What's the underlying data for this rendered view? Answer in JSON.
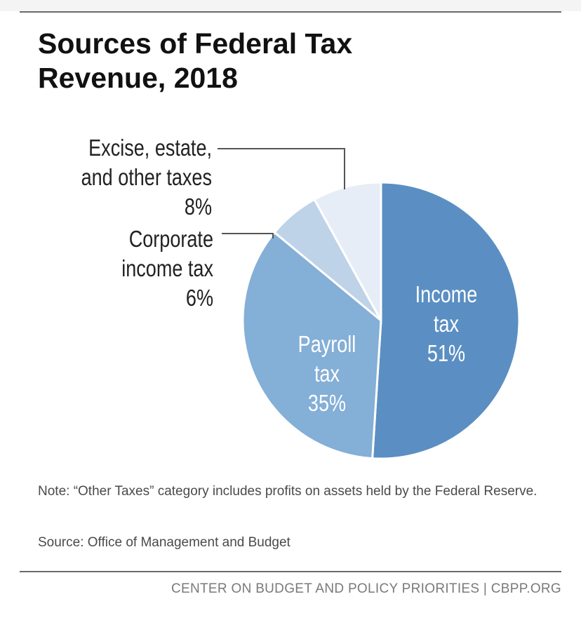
{
  "chart_data": {
    "type": "pie",
    "title_lines": [
      "Sources of Federal Tax",
      "Revenue, 2018"
    ],
    "slices": [
      {
        "name": "income_tax",
        "label_lines": [
          "Income",
          "tax"
        ],
        "value": 51,
        "value_label": "51%",
        "color": "#5b8fc3",
        "label_color": "#ffffff",
        "label_placement": "inside"
      },
      {
        "name": "payroll_tax",
        "label_lines": [
          "Payroll",
          "tax"
        ],
        "value": 35,
        "value_label": "35%",
        "color": "#84afd6",
        "label_color": "#ffffff",
        "label_placement": "inside"
      },
      {
        "name": "corporate_income_tax",
        "label_lines": [
          "Corporate",
          "income tax"
        ],
        "value": 6,
        "value_label": "6%",
        "color": "#bed3e8",
        "label_color": "#222222",
        "label_placement": "outside-left"
      },
      {
        "name": "excise_estate_other",
        "label_lines": [
          "Excise, estate,",
          "and other taxes"
        ],
        "value": 8,
        "value_label": "8%",
        "color": "#e6edf7",
        "label_color": "#222222",
        "label_placement": "outside-left"
      }
    ],
    "start": "12 o'clock",
    "direction": "clockwise"
  },
  "note": "Note: “Other Taxes” category includes profits on assets held by the Federal Reserve.",
  "source": "Source: Office of Management and Budget",
  "footer": "CENTER ON BUDGET AND POLICY PRIORITIES | CBPP.ORG"
}
